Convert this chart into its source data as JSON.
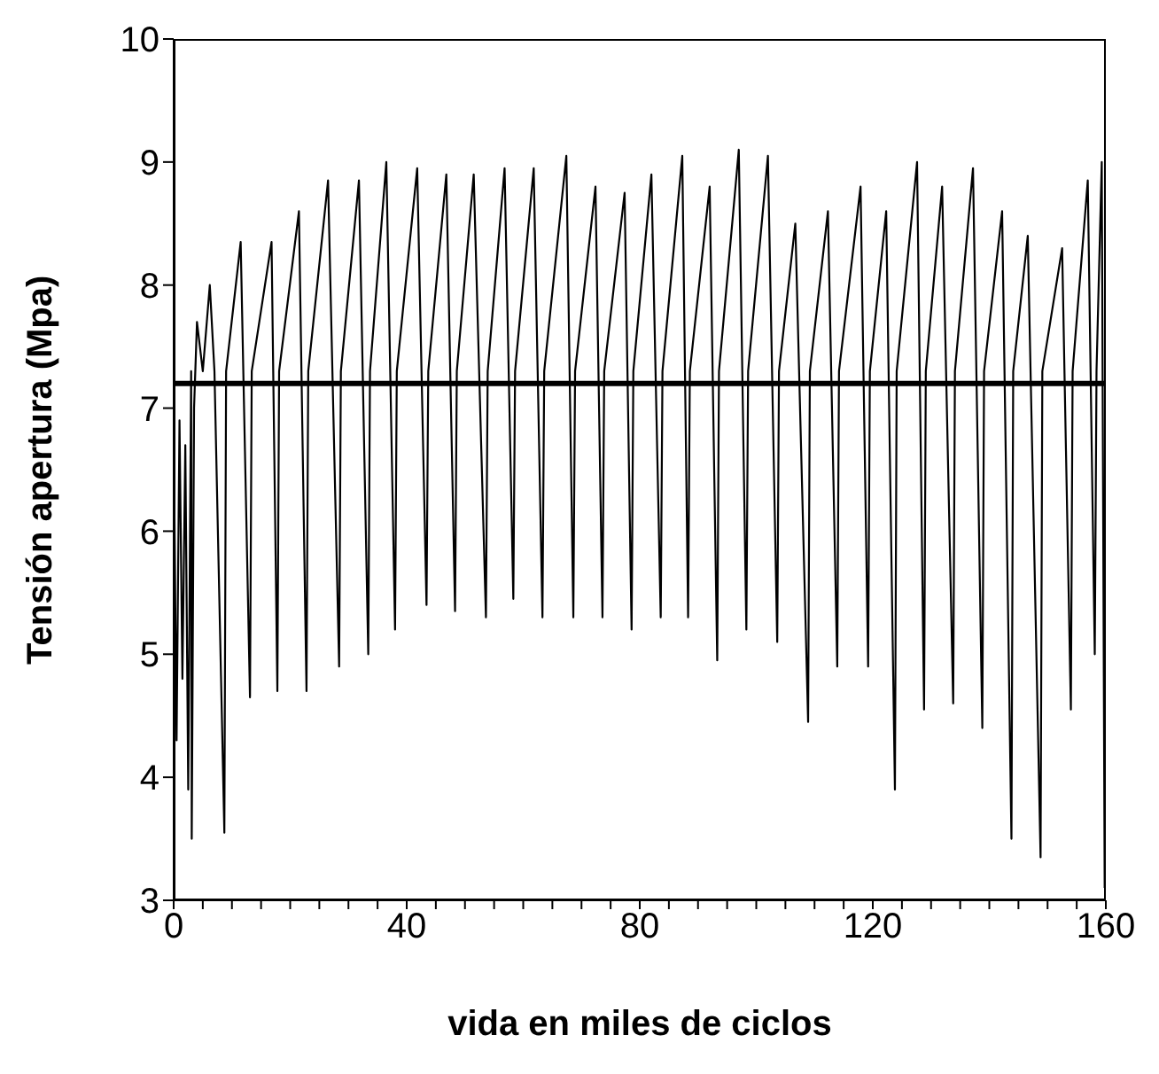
{
  "chart_data": {
    "type": "line",
    "xlabel": "vida en miles de ciclos",
    "ylabel": "Tensión apertura (Mpa)",
    "xlim": [
      0,
      160
    ],
    "ylim": [
      3,
      10
    ],
    "xticks": [
      0,
      {
        "value": 5,
        "label": null
      },
      {
        "value": 10,
        "label": null
      },
      {
        "value": 15,
        "label": null
      },
      {
        "value": 20,
        "label": null
      },
      {
        "value": 25,
        "label": null
      },
      {
        "value": 30,
        "label": null
      },
      {
        "value": 35,
        "label": null
      },
      40,
      {
        "value": 45,
        "label": null
      },
      {
        "value": 50,
        "label": null
      },
      {
        "value": 55,
        "label": null
      },
      {
        "value": 60,
        "label": null
      },
      {
        "value": 65,
        "label": null
      },
      {
        "value": 70,
        "label": null
      },
      {
        "value": 75,
        "label": null
      },
      80,
      {
        "value": 85,
        "label": null
      },
      {
        "value": 90,
        "label": null
      },
      {
        "value": 95,
        "label": null
      },
      {
        "value": 100,
        "label": null
      },
      {
        "value": 105,
        "label": null
      },
      {
        "value": 110,
        "label": null
      },
      {
        "value": 115,
        "label": null
      },
      120,
      {
        "value": 125,
        "label": null
      },
      {
        "value": 130,
        "label": null
      },
      {
        "value": 135,
        "label": null
      },
      {
        "value": 140,
        "label": null
      },
      {
        "value": 145,
        "label": null
      },
      {
        "value": 150,
        "label": null
      },
      {
        "value": 155,
        "label": null
      },
      160
    ],
    "yticks": [
      3,
      4,
      5,
      6,
      7,
      8,
      9,
      10
    ],
    "grid": false,
    "legend": false,
    "line_style": "solid",
    "ref_lines": [
      {
        "axis": "y",
        "value": 7.2,
        "color": "#000000"
      }
    ],
    "series": [
      {
        "color": "#000000",
        "x": [
          0,
          0.5,
          1,
          1.5,
          2,
          2.5,
          3,
          3.1,
          3.5,
          4,
          5,
          6.2,
          7,
          8.7,
          9,
          11.5,
          13.1,
          13.4,
          16.8,
          17.8,
          18.1,
          21.5,
          22.8,
          23.1,
          26.5,
          28.4,
          28.7,
          31.8,
          33.4,
          33.7,
          36.5,
          38,
          38.3,
          41.8,
          43.4,
          43.7,
          46.8,
          48.3,
          48.6,
          51.5,
          53.6,
          53.9,
          56.8,
          58.3,
          58.6,
          61.8,
          63.3,
          63.6,
          67.4,
          68.6,
          68.9,
          72.4,
          73.6,
          73.9,
          77.4,
          78.6,
          78.9,
          82,
          83.6,
          83.9,
          87.3,
          88.3,
          88.6,
          92,
          93.3,
          93.6,
          97,
          98.3,
          98.6,
          102,
          103.6,
          103.9,
          106.7,
          108.9,
          109.2,
          112.3,
          113.9,
          114.2,
          117.9,
          119.2,
          119.5,
          122.3,
          123.8,
          124.1,
          127.6,
          128.8,
          129.1,
          131.9,
          133.8,
          134.1,
          137.2,
          138.8,
          139.1,
          142.2,
          143.8,
          144.1,
          146.6,
          148.8,
          149.1,
          152.5,
          154,
          154.3,
          156.9,
          158.1,
          158.4,
          159.3,
          159.8
        ],
        "values": [
          6.8,
          4.3,
          6.9,
          4.8,
          6.7,
          3.9,
          7.3,
          3.5,
          7.0,
          7.7,
          7.3,
          8.0,
          7.3,
          3.55,
          7.3,
          8.35,
          4.65,
          7.3,
          8.35,
          4.7,
          7.3,
          8.6,
          4.7,
          7.3,
          8.85,
          4.9,
          7.3,
          8.85,
          5.0,
          7.3,
          9.0,
          5.2,
          7.3,
          8.95,
          5.4,
          7.3,
          8.9,
          5.35,
          7.3,
          8.9,
          5.3,
          7.3,
          8.95,
          5.45,
          7.3,
          8.95,
          5.3,
          7.3,
          9.05,
          5.3,
          7.3,
          8.8,
          5.3,
          7.3,
          8.75,
          5.2,
          7.3,
          8.9,
          5.3,
          7.3,
          9.05,
          5.3,
          7.3,
          8.8,
          4.95,
          7.3,
          9.1,
          5.2,
          7.3,
          9.05,
          5.1,
          7.3,
          8.5,
          4.45,
          7.3,
          8.6,
          4.9,
          7.3,
          8.8,
          4.9,
          7.3,
          8.6,
          3.9,
          7.3,
          9.0,
          4.55,
          7.3,
          8.8,
          4.6,
          7.3,
          8.95,
          4.4,
          7.3,
          8.6,
          3.5,
          7.3,
          8.4,
          3.35,
          7.3,
          8.3,
          4.55,
          7.3,
          8.85,
          5.0,
          7.3,
          9.0,
          3.1
        ]
      }
    ]
  }
}
